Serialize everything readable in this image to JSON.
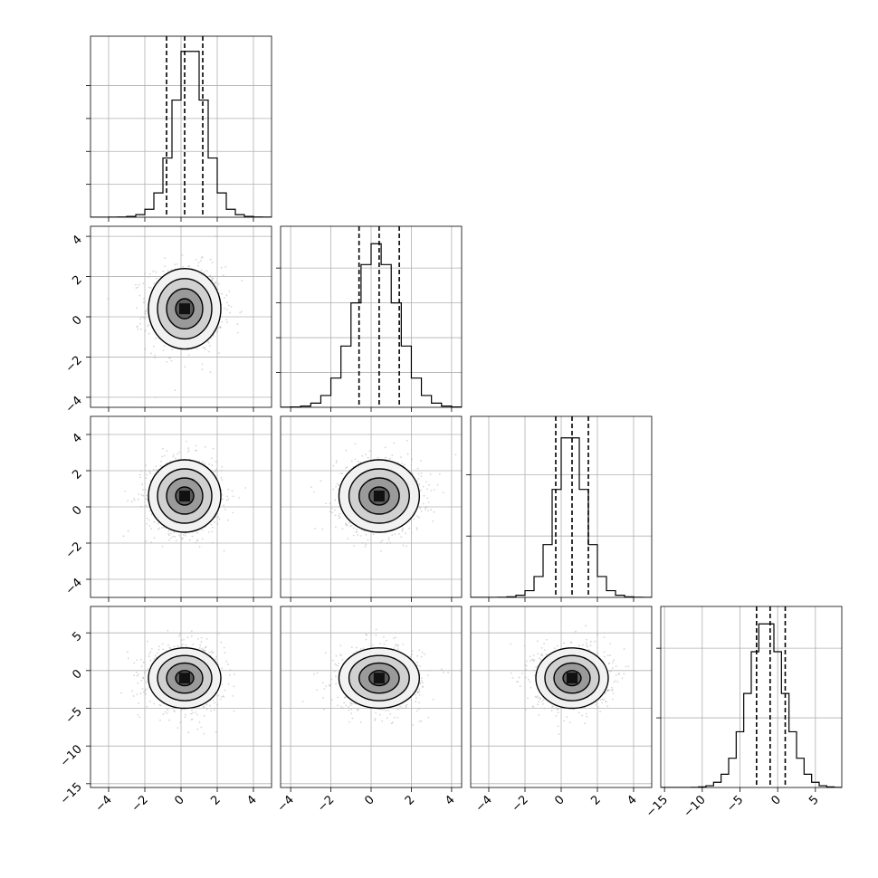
{
  "chart_data": {
    "type": "corner",
    "n_params": 4,
    "params": [
      {
        "mean": 0.2,
        "sd": 1.0,
        "range": [
          -5,
          5
        ],
        "ticks": [
          -4,
          -2,
          0,
          2,
          4
        ],
        "tick_labels": [
          "−4",
          "−2",
          "0",
          "2",
          "4"
        ],
        "quantiles": [
          -0.8,
          0.2,
          1.2
        ]
      },
      {
        "mean": 0.4,
        "sd": 1.0,
        "range": [
          -4.5,
          4.5
        ],
        "ticks": [
          -4,
          -2,
          0,
          2,
          4
        ],
        "tick_labels": [
          "−4",
          "−2",
          "0",
          "2",
          "4"
        ],
        "quantiles": [
          -0.6,
          0.4,
          1.4
        ]
      },
      {
        "mean": 0.6,
        "sd": 1.0,
        "range": [
          -5,
          5
        ],
        "ticks": [
          -4,
          -2,
          0,
          2,
          4
        ],
        "tick_labels": [
          "−4",
          "−2",
          "0",
          "2",
          "4"
        ],
        "quantiles": [
          -0.3,
          0.6,
          1.5
        ]
      },
      {
        "mean": -1.0,
        "sd": 2.0,
        "range": [
          -15.5,
          8.5
        ],
        "ticks": [
          -15,
          -10,
          -5,
          0,
          5
        ],
        "tick_labels": [
          "−15",
          "−10",
          "−5",
          "0",
          "5"
        ],
        "quantiles": [
          -2.8,
          -1.0,
          1.0
        ]
      }
    ],
    "histograms": [
      {
        "param": 0,
        "bin_edges": [
          -5.0,
          -4.5,
          -4.0,
          -3.5,
          -3.0,
          -2.5,
          -2.0,
          -1.5,
          -1.0,
          -0.5,
          0.0,
          0.5,
          1.0,
          1.5,
          2.0,
          2.5,
          3.0,
          3.5,
          4.0,
          4.5,
          5.0
        ],
        "counts": [
          0,
          0,
          2,
          4,
          12,
          40,
          120,
          370,
          900,
          1780,
          2520,
          2520,
          1780,
          900,
          370,
          120,
          40,
          12,
          4,
          2
        ],
        "y_ticks": [
          500,
          1000,
          1500,
          2000
        ],
        "ylim": [
          0,
          2750
        ]
      },
      {
        "param": 1,
        "bin_edges": [
          -4.5,
          -4.0,
          -3.5,
          -3.0,
          -2.5,
          -2.0,
          -1.5,
          -1.0,
          -0.5,
          0.0,
          0.5,
          1.0,
          1.5,
          2.0,
          2.5,
          3.0,
          3.5,
          4.0,
          4.5
        ],
        "counts": [
          2,
          5,
          18,
          60,
          170,
          420,
          880,
          1500,
          2050,
          2350,
          2050,
          1500,
          880,
          420,
          170,
          60,
          18,
          5
        ],
        "y_ticks": [
          500,
          1000,
          1500,
          2000
        ],
        "ylim": [
          0,
          2600
        ]
      },
      {
        "param": 2,
        "bin_edges": [
          -5.0,
          -4.5,
          -4.0,
          -3.5,
          -3.0,
          -2.5,
          -2.0,
          -1.5,
          -1.0,
          -0.5,
          0.0,
          0.5,
          1.0,
          1.5,
          2.0,
          2.5,
          3.0,
          3.5,
          4.0,
          4.5,
          5.0
        ],
        "counts": [
          0,
          0,
          1,
          3,
          10,
          35,
          110,
          340,
          860,
          1760,
          2600,
          2600,
          1760,
          860,
          340,
          110,
          35,
          10,
          3,
          1
        ],
        "y_ticks": [
          1000,
          2000
        ],
        "ylim": [
          0,
          2950
        ]
      },
      {
        "param": 3,
        "bin_edges": [
          -15.5,
          -14.5,
          -13.5,
          -12.5,
          -11.5,
          -10.5,
          -9.5,
          -8.5,
          -7.5,
          -6.5,
          -5.5,
          -4.5,
          -3.5,
          -2.5,
          -1.5,
          -0.5,
          0.5,
          1.5,
          2.5,
          3.5,
          4.5,
          5.5,
          6.5,
          7.5,
          8.5
        ],
        "counts": [
          0,
          0,
          0,
          1,
          2,
          8,
          25,
          75,
          190,
          420,
          800,
          1350,
          1950,
          2350,
          2350,
          1950,
          1350,
          800,
          420,
          190,
          75,
          25,
          8,
          2
        ],
        "y_ticks": [
          1000,
          2000
        ],
        "ylim": [
          0,
          2600
        ]
      }
    ],
    "contour_levels_sigma": [
      0.5,
      1.0,
      1.5,
      2.0
    ],
    "x_axis_tick_labels_rotation_deg": 45,
    "y_axis_tick_labels_rotation_deg": 45,
    "grid": true,
    "colors": {
      "frame": "#000000",
      "grid": "#b0b0b0",
      "points": "#b4b4b4",
      "contour": "#000000",
      "hist": "#000000"
    }
  }
}
